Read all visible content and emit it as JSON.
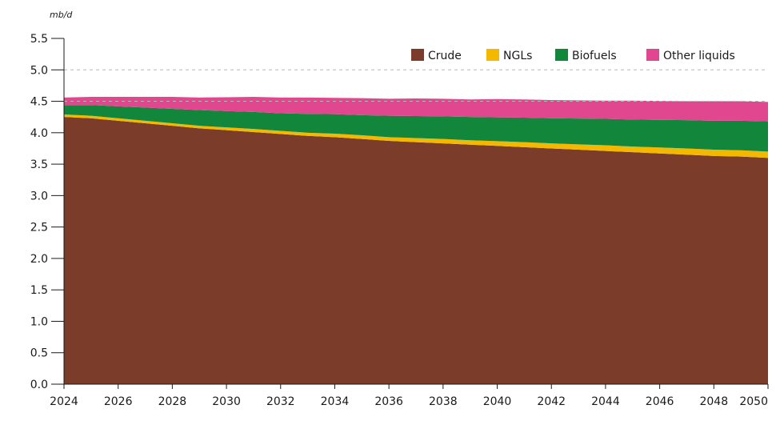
{
  "chart_data": {
    "type": "area",
    "stacked": true,
    "unit_label": "mb/d",
    "title": "",
    "xlabel": "",
    "ylabel": "",
    "xlim": [
      2024,
      2050
    ],
    "ylim": [
      0,
      5.5
    ],
    "x_ticks": [
      "2024",
      "2026",
      "2028",
      "2030",
      "2032",
      "2034",
      "2036",
      "2038",
      "2040",
      "2042",
      "2044",
      "2046",
      "2048",
      "2050"
    ],
    "y_ticks": [
      "0.0",
      "0.5",
      "1.0",
      "1.5",
      "2.0",
      "2.5",
      "3.0",
      "3.5",
      "4.0",
      "4.5",
      "5.0",
      "5.5"
    ],
    "gridlines": [
      4.5,
      5.0
    ],
    "legend_position": "top-right",
    "x": [
      2024,
      2025,
      2026,
      2027,
      2028,
      2029,
      2030,
      2031,
      2032,
      2033,
      2034,
      2035,
      2036,
      2037,
      2038,
      2039,
      2040,
      2041,
      2042,
      2043,
      2044,
      2045,
      2046,
      2047,
      2048,
      2049,
      2050
    ],
    "series": [
      {
        "name": "Crude",
        "color": "#7B3D2A",
        "values": [
          4.25,
          4.23,
          4.19,
          4.15,
          4.11,
          4.07,
          4.04,
          4.01,
          3.98,
          3.95,
          3.93,
          3.9,
          3.87,
          3.85,
          3.83,
          3.81,
          3.79,
          3.77,
          3.75,
          3.73,
          3.71,
          3.69,
          3.67,
          3.65,
          3.63,
          3.62,
          3.6
        ]
      },
      {
        "name": "NGLs",
        "color": "#F5B800",
        "values": [
          0.04,
          0.04,
          0.04,
          0.04,
          0.04,
          0.04,
          0.045,
          0.05,
          0.05,
          0.05,
          0.055,
          0.06,
          0.06,
          0.065,
          0.07,
          0.07,
          0.075,
          0.08,
          0.08,
          0.085,
          0.09,
          0.09,
          0.095,
          0.1,
          0.1,
          0.1,
          0.1
        ]
      },
      {
        "name": "Biofuels",
        "color": "#12873C",
        "values": [
          0.15,
          0.17,
          0.19,
          0.21,
          0.23,
          0.25,
          0.26,
          0.27,
          0.28,
          0.3,
          0.31,
          0.32,
          0.34,
          0.35,
          0.36,
          0.37,
          0.38,
          0.39,
          0.4,
          0.41,
          0.42,
          0.43,
          0.44,
          0.45,
          0.46,
          0.47,
          0.48
        ]
      },
      {
        "name": "Other liquids",
        "color": "#E0478E",
        "values": [
          0.12,
          0.13,
          0.15,
          0.17,
          0.19,
          0.2,
          0.22,
          0.24,
          0.25,
          0.26,
          0.26,
          0.27,
          0.27,
          0.28,
          0.28,
          0.28,
          0.29,
          0.29,
          0.29,
          0.29,
          0.29,
          0.3,
          0.3,
          0.3,
          0.31,
          0.31,
          0.31
        ]
      }
    ]
  }
}
